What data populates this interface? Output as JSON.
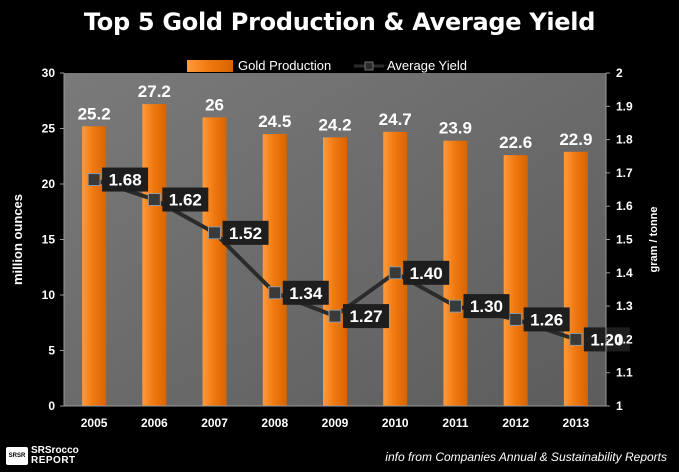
{
  "chart_data": {
    "type": "bar",
    "title": "Top 5 Gold Production & Average Yield",
    "categories": [
      "2005",
      "2006",
      "2007",
      "2008",
      "2009",
      "2010",
      "2011",
      "2012",
      "2013"
    ],
    "series": [
      {
        "name": "Gold Production",
        "type": "bar",
        "axis": "left",
        "values": [
          25.2,
          27.2,
          26,
          24.5,
          24.2,
          24.7,
          23.9,
          22.6,
          22.9
        ],
        "labels": [
          "25.2",
          "27.2",
          "26",
          "24.5",
          "24.2",
          "24.7",
          "23.9",
          "22.6",
          "22.9"
        ]
      },
      {
        "name": "Average Yield",
        "type": "line",
        "axis": "right",
        "values": [
          1.68,
          1.62,
          1.52,
          1.34,
          1.27,
          1.4,
          1.3,
          1.26,
          1.2
        ],
        "labels": [
          "1.68",
          "1.62",
          "1.52",
          "1.34",
          "1.27",
          "1.40",
          "1.30",
          "1.26",
          "1.20"
        ]
      }
    ],
    "y_left": {
      "label": "million ounces",
      "ylim": [
        0,
        30
      ],
      "ticks": [
        "0",
        "5",
        "10",
        "15",
        "20",
        "25",
        "30"
      ]
    },
    "y_right": {
      "label": "gram / tonne",
      "ylim": [
        1,
        2
      ],
      "ticks": [
        "1",
        "1.1",
        "1.2",
        "1.3",
        "1.4",
        "1.5",
        "1.6",
        "1.7",
        "1.8",
        "1.9",
        "2"
      ]
    },
    "legend_position": "top",
    "grid": false,
    "colors": {
      "bar": "#ff7f0e",
      "line": "#2b2b2b",
      "plot_bg": "#6e6e6e"
    }
  },
  "footer": {
    "source": "info from Companies Annual & Sustainability Reports",
    "logo_line1": "SRSrocco",
    "logo_line2": "REPORT",
    "logo_mark": "SRSR"
  }
}
